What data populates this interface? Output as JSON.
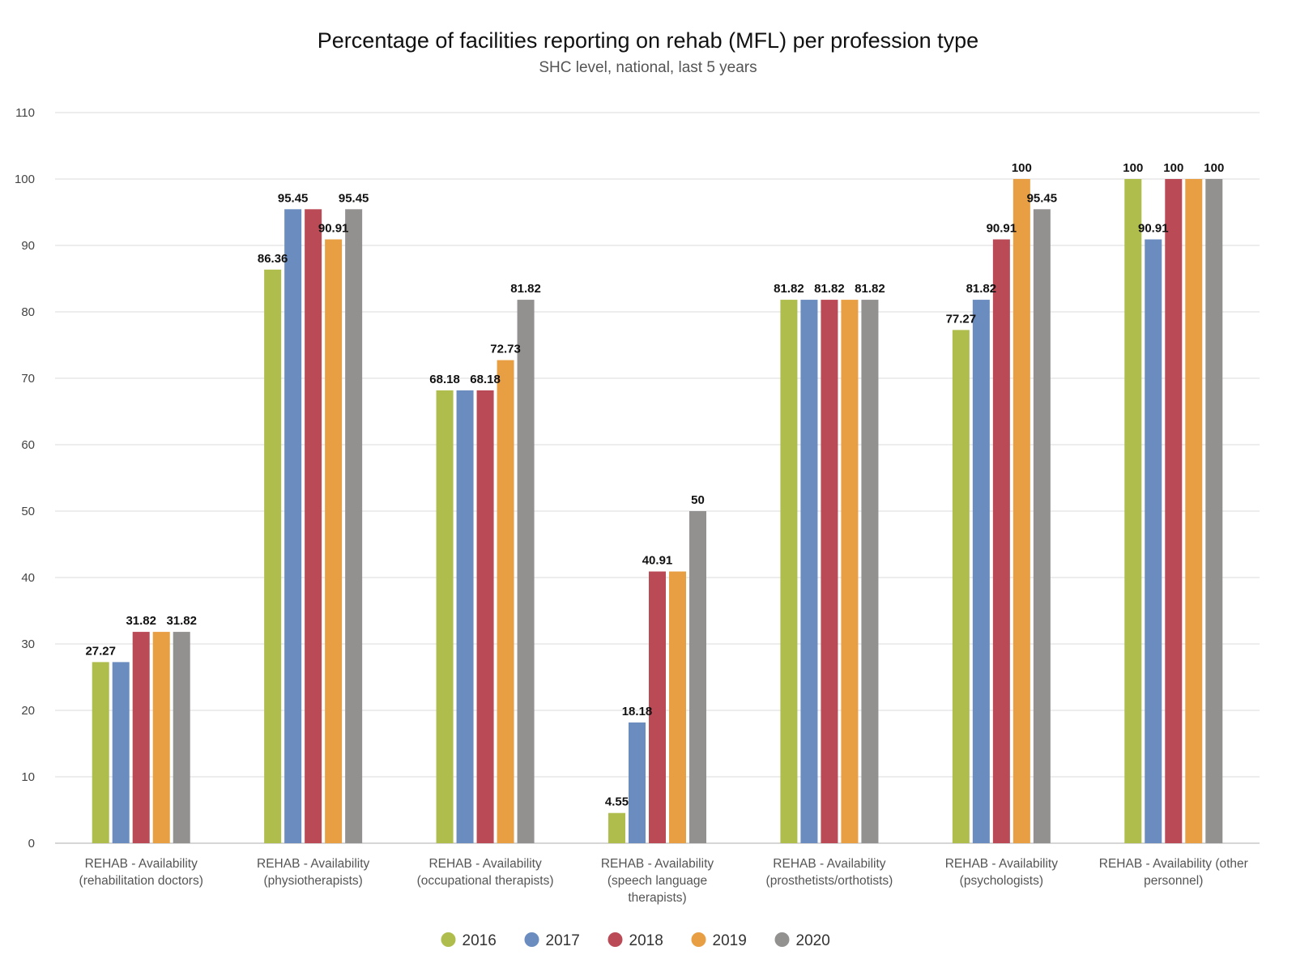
{
  "chart_data": {
    "type": "bar",
    "title": "Percentage of facilities reporting on rehab (MFL) per profession type",
    "subtitle": "SHC level, national, last 5 years",
    "xlabel": "",
    "ylabel": "",
    "ylim": [
      0,
      110
    ],
    "yticks": [
      0,
      10,
      20,
      30,
      40,
      50,
      60,
      70,
      80,
      90,
      100,
      110
    ],
    "grid": true,
    "legend_position": "bottom",
    "categories": [
      [
        "REHAB - Availability",
        "(rehabilitation doctors)"
      ],
      [
        "REHAB - Availability",
        "(physiotherapists)"
      ],
      [
        "REHAB - Availability",
        "(occupational therapists)"
      ],
      [
        "REHAB - Availability",
        "(speech language",
        "therapists)"
      ],
      [
        "REHAB - Availability",
        "(prosthetists/orthotists)"
      ],
      [
        "REHAB - Availability",
        "(psychologists)"
      ],
      [
        "REHAB - Availability (other",
        "personnel)"
      ]
    ],
    "series": [
      {
        "name": "2016",
        "color": "#aebd4c",
        "values": [
          27.27,
          86.36,
          68.18,
          4.55,
          81.82,
          77.27,
          100
        ]
      },
      {
        "name": "2017",
        "color": "#6a8cbf",
        "values": [
          27.27,
          95.45,
          68.18,
          18.18,
          81.82,
          81.82,
          90.91
        ]
      },
      {
        "name": "2018",
        "color": "#bb4a57",
        "values": [
          31.82,
          95.45,
          68.18,
          40.91,
          81.82,
          90.91,
          100
        ]
      },
      {
        "name": "2019",
        "color": "#e89f44",
        "values": [
          31.82,
          90.91,
          72.73,
          40.91,
          81.82,
          100,
          100
        ]
      },
      {
        "name": "2020",
        "color": "#939090",
        "values": [
          31.82,
          95.45,
          81.82,
          50,
          81.82,
          95.45,
          100
        ]
      }
    ],
    "data_labels": [
      [
        "27.27",
        "",
        "31.82",
        "",
        "31.82"
      ],
      [
        "86.36",
        "95.45",
        "",
        "90.91",
        "95.45"
      ],
      [
        "68.18",
        "",
        "68.18",
        "72.73",
        "81.82"
      ],
      [
        "4.55",
        "18.18",
        "40.91",
        "",
        "50"
      ],
      [
        "81.82",
        "",
        "81.82",
        "",
        "81.82"
      ],
      [
        "77.27",
        "81.82",
        "90.91",
        "100",
        "95.45"
      ],
      [
        "100",
        "90.91",
        "100",
        "",
        "100"
      ]
    ]
  }
}
